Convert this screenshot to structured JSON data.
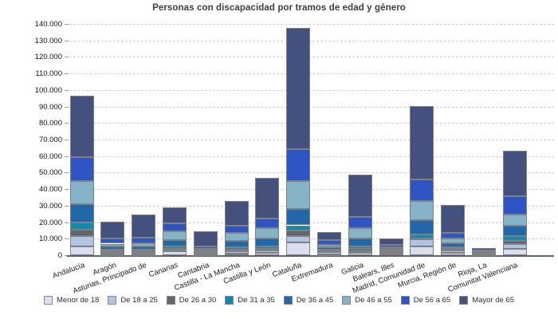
{
  "title": "Personas con discapacidad por tramos de edad y género",
  "chart_data": {
    "type": "bar",
    "stacked": true,
    "title": "Personas con discapacidad por tramos de edad y género",
    "xlabel": "",
    "ylabel": "",
    "ylim": [
      0,
      140000
    ],
    "y_tick_step": 10000,
    "grid": "horizontal-dashed",
    "legend_position": "bottom",
    "y_ticks": [
      "0",
      "10.000",
      "20.000",
      "30.000",
      "40.000",
      "50.000",
      "60.000",
      "70.000",
      "80.000",
      "90.000",
      "100.000",
      "110.000",
      "120.000",
      "130.000",
      "140.000"
    ],
    "categories": [
      "Andalucía",
      "Aragón",
      "Asturias, Principado de",
      "Canarias",
      "Cantabria",
      "Castilla - La Mancha",
      "Castilla y León",
      "Cataluña",
      "Extremadura",
      "Galicia",
      "Balears, Illes",
      "Madrid, Comunidad de",
      "Murcia, Región de",
      "Rioja, La",
      "Comunitat Valenciana"
    ],
    "series": [
      {
        "name": "Menor de 18",
        "color": "#dadeef",
        "values": [
          5300,
          500,
          600,
          2600,
          500,
          1000,
          1300,
          7700,
          700,
          1300,
          1000,
          5300,
          1600,
          300,
          4100
        ]
      },
      {
        "name": "De 18 a 25",
        "color": "#b1c4e3",
        "values": [
          6100,
          1100,
          1000,
          800,
          500,
          1200,
          1400,
          4000,
          1000,
          1100,
          700,
          4500,
          1300,
          300,
          2800
        ]
      },
      {
        "name": "De 26 a 30",
        "color": "#63656b",
        "values": [
          4000,
          800,
          1000,
          500,
          500,
          1200,
          1200,
          3400,
          900,
          1500,
          900,
          400,
          800,
          250,
          1600
        ]
      },
      {
        "name": "De 31 a 35",
        "color": "#1289ad",
        "values": [
          4500,
          800,
          900,
          1500,
          700,
          1200,
          1400,
          3000,
          800,
          1400,
          600,
          2400,
          1300,
          250,
          2900
        ]
      },
      {
        "name": "De 36 a 45",
        "color": "#2268a8",
        "values": [
          11200,
          2100,
          1800,
          4000,
          700,
          3900,
          4800,
          10100,
          1600,
          4800,
          500,
          8500,
          2200,
          500,
          6400
        ]
      },
      {
        "name": "De 46 a 55",
        "color": "#85b3c8",
        "values": [
          13700,
          1700,
          1900,
          4900,
          1100,
          4800,
          6400,
          16900,
          1500,
          6100,
          1100,
          11600,
          2900,
          500,
          6900
        ]
      },
      {
        "name": "De 56 a 65",
        "color": "#2f55c5",
        "values": [
          14400,
          3100,
          3200,
          5100,
          1300,
          4800,
          5700,
          19000,
          2500,
          7200,
          1300,
          13300,
          3200,
          600,
          10800
        ]
      },
      {
        "name": "Mayor de 65",
        "color": "#44517e",
        "values": [
          37300,
          10400,
          14200,
          9600,
          9300,
          14500,
          24800,
          73700,
          4800,
          25300,
          3900,
          44100,
          17100,
          1800,
          27600
        ]
      }
    ],
    "totals": [
      96500,
      20500,
      24600,
      29000,
      14600,
      32600,
      47000,
      137800,
      13800,
      48700,
      10000,
      90100,
      30400,
      4500,
      63100
    ]
  },
  "colors": {
    "background": "#ffffff",
    "gridline": "#cfcfcf",
    "axis_line": "#606368",
    "bar_border": "#7f8083",
    "title_text": "#3c3c3c"
  }
}
